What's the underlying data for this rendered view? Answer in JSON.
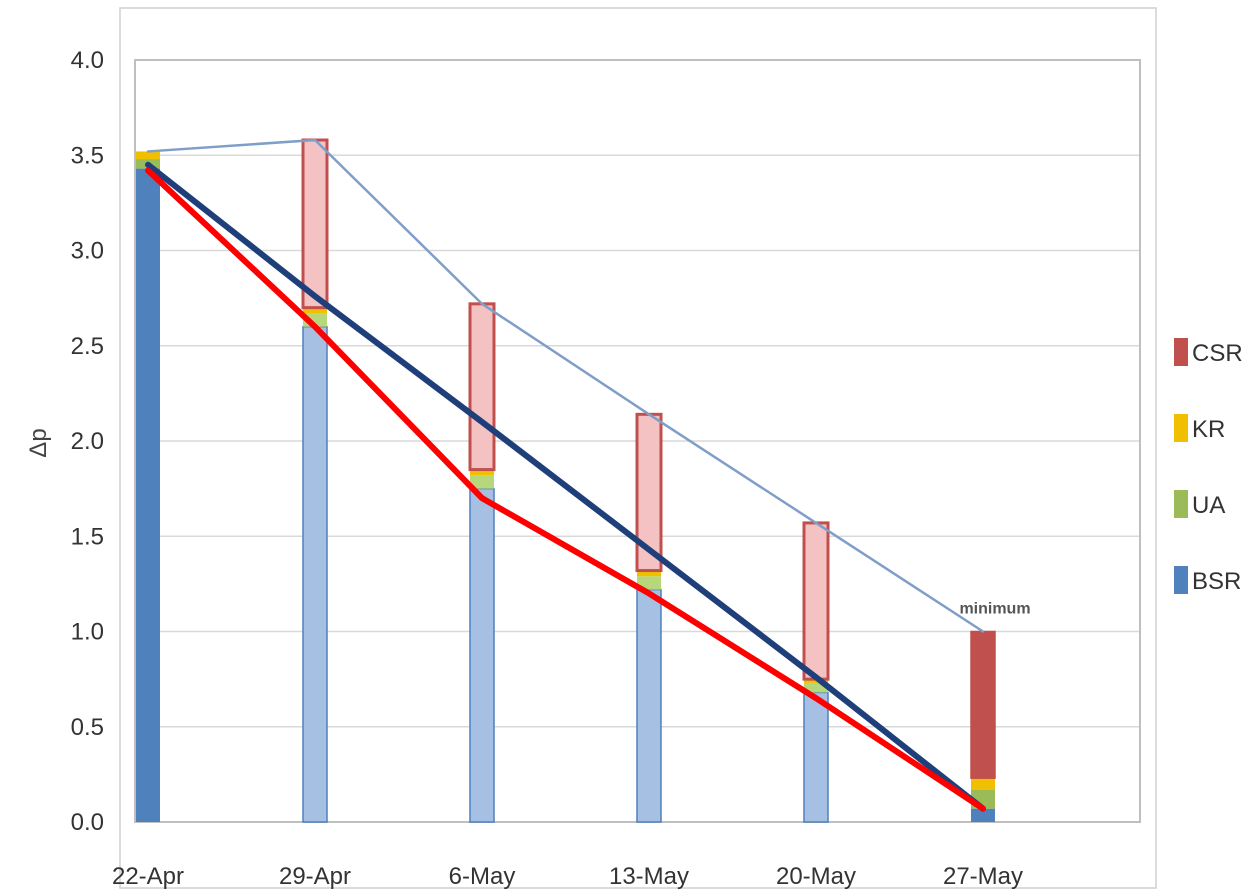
{
  "chart_data": {
    "type": "bar",
    "stacked": true,
    "categories": [
      "22-Apr",
      "29-Apr",
      "6-May",
      "13-May",
      "20-May",
      "27-May"
    ],
    "series": [
      {
        "name": "BSR",
        "color": "#4f81bd",
        "values": [
          3.43,
          2.6,
          1.75,
          1.22,
          0.68,
          0.07
        ]
      },
      {
        "name": "UA",
        "color": "#9bbb59",
        "values": [
          0.05,
          0.07,
          0.07,
          0.07,
          0.05,
          0.1
        ]
      },
      {
        "name": "KR",
        "color": "#f0c000",
        "values": [
          0.04,
          0.03,
          0.03,
          0.03,
          0.02,
          0.06
        ]
      },
      {
        "name": "CSR",
        "color": "#c0504d",
        "values": [
          0.0,
          0.88,
          0.87,
          0.82,
          0.82,
          0.77
        ]
      }
    ],
    "lines": [
      {
        "color": "#7f9ec8",
        "values": [
          3.52,
          3.58,
          2.72,
          2.14,
          1.57,
          1.0
        ]
      },
      {
        "color": "#1f3f7a",
        "values": [
          3.45,
          2.76,
          2.1,
          1.43,
          0.76,
          0.07
        ]
      },
      {
        "color": "#ff0000",
        "values": [
          3.42,
          2.6,
          1.7,
          1.2,
          0.65,
          0.07
        ]
      }
    ],
    "annotation": {
      "text": "minimum",
      "category": "27-May",
      "value": 1.0
    },
    "xlabel": "",
    "ylabel": "Δp",
    "ylim": [
      0,
      4
    ],
    "yticks": [
      "0.0",
      "0.5",
      "1.0",
      "1.5",
      "2.0",
      "2.5",
      "3.0",
      "3.5",
      "4.0"
    ],
    "grid": true,
    "legend_position": "right",
    "legend_order": [
      "CSR",
      "KR",
      "UA",
      "BSR"
    ]
  }
}
